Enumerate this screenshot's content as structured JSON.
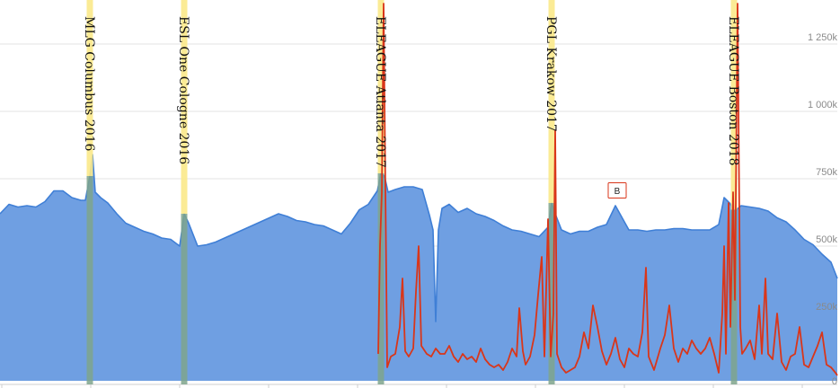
{
  "chart_data": {
    "type": "area",
    "title": "",
    "xlabel": "",
    "ylabel": "",
    "x_range": [
      0,
      932
    ],
    "ylim": [
      0,
      1400000
    ],
    "y_ticks": [
      {
        "value": 0,
        "label": "0"
      },
      {
        "value": 250000,
        "label": "250k"
      },
      {
        "value": 500000,
        "label": "500k"
      },
      {
        "value": 750000,
        "label": "750k"
      },
      {
        "value": 1000000,
        "label": "1 000k"
      },
      {
        "value": 1250000,
        "label": "1 250k"
      }
    ],
    "grid": true,
    "legend": "none",
    "colors": {
      "series_area_fill": "#6f9fe2",
      "series_area_line": "#3f7fd6",
      "series_line": "#d9361a",
      "event_band": "#fbe98a",
      "event_band_overlap": "#7fa48c",
      "grid": "#e3e3e3",
      "marker_border": "#d9361a"
    },
    "series": [
      {
        "kind": "area",
        "points": [
          [
            0,
            620000
          ],
          [
            10,
            655000
          ],
          [
            20,
            645000
          ],
          [
            30,
            650000
          ],
          [
            40,
            645000
          ],
          [
            50,
            665000
          ],
          [
            60,
            705000
          ],
          [
            70,
            705000
          ],
          [
            80,
            680000
          ],
          [
            90,
            670000
          ],
          [
            95,
            670000
          ],
          [
            100,
            760000
          ],
          [
            103,
            840000
          ],
          [
            106,
            700000
          ],
          [
            112,
            680000
          ],
          [
            120,
            660000
          ],
          [
            130,
            620000
          ],
          [
            140,
            585000
          ],
          [
            150,
            570000
          ],
          [
            160,
            555000
          ],
          [
            170,
            545000
          ],
          [
            180,
            530000
          ],
          [
            190,
            525000
          ],
          [
            200,
            500000
          ],
          [
            205,
            620000
          ],
          [
            210,
            585000
          ],
          [
            220,
            500000
          ],
          [
            230,
            505000
          ],
          [
            240,
            515000
          ],
          [
            250,
            530000
          ],
          [
            260,
            545000
          ],
          [
            270,
            560000
          ],
          [
            280,
            575000
          ],
          [
            290,
            590000
          ],
          [
            300,
            605000
          ],
          [
            310,
            620000
          ],
          [
            320,
            610000
          ],
          [
            330,
            595000
          ],
          [
            340,
            590000
          ],
          [
            350,
            580000
          ],
          [
            360,
            575000
          ],
          [
            370,
            560000
          ],
          [
            380,
            545000
          ],
          [
            390,
            585000
          ],
          [
            400,
            635000
          ],
          [
            410,
            655000
          ],
          [
            420,
            705000
          ],
          [
            424,
            770000
          ],
          [
            428,
            760000
          ],
          [
            432,
            700000
          ],
          [
            440,
            710000
          ],
          [
            450,
            720000
          ],
          [
            460,
            720000
          ],
          [
            470,
            710000
          ],
          [
            478,
            615000
          ],
          [
            482,
            560000
          ],
          [
            485,
            220000
          ],
          [
            488,
            560000
          ],
          [
            492,
            640000
          ],
          [
            500,
            655000
          ],
          [
            510,
            625000
          ],
          [
            520,
            640000
          ],
          [
            530,
            620000
          ],
          [
            540,
            610000
          ],
          [
            550,
            595000
          ],
          [
            560,
            575000
          ],
          [
            570,
            560000
          ],
          [
            580,
            555000
          ],
          [
            590,
            545000
          ],
          [
            600,
            535000
          ],
          [
            610,
            570000
          ],
          [
            614,
            660000
          ],
          [
            618,
            620000
          ],
          [
            625,
            560000
          ],
          [
            635,
            545000
          ],
          [
            645,
            555000
          ],
          [
            655,
            555000
          ],
          [
            665,
            570000
          ],
          [
            675,
            580000
          ],
          [
            685,
            650000
          ],
          [
            690,
            620000
          ],
          [
            700,
            560000
          ],
          [
            710,
            560000
          ],
          [
            720,
            555000
          ],
          [
            730,
            560000
          ],
          [
            740,
            560000
          ],
          [
            750,
            565000
          ],
          [
            760,
            565000
          ],
          [
            770,
            560000
          ],
          [
            780,
            560000
          ],
          [
            790,
            560000
          ],
          [
            800,
            580000
          ],
          [
            806,
            680000
          ],
          [
            812,
            660000
          ],
          [
            818,
            630000
          ],
          [
            825,
            650000
          ],
          [
            835,
            645000
          ],
          [
            845,
            640000
          ],
          [
            855,
            630000
          ],
          [
            865,
            605000
          ],
          [
            875,
            590000
          ],
          [
            885,
            560000
          ],
          [
            895,
            525000
          ],
          [
            905,
            505000
          ],
          [
            915,
            470000
          ],
          [
            925,
            440000
          ],
          [
            932,
            380000
          ]
        ]
      },
      {
        "kind": "line",
        "points": [
          [
            421,
            100000
          ],
          [
            423,
            500000
          ],
          [
            425,
            700000
          ],
          [
            427,
            1400000
          ],
          [
            429,
            700000
          ],
          [
            431,
            50000
          ],
          [
            435,
            90000
          ],
          [
            440,
            100000
          ],
          [
            445,
            200000
          ],
          [
            448,
            380000
          ],
          [
            451,
            110000
          ],
          [
            455,
            90000
          ],
          [
            460,
            120000
          ],
          [
            463,
            330000
          ],
          [
            466,
            500000
          ],
          [
            469,
            130000
          ],
          [
            475,
            100000
          ],
          [
            480,
            90000
          ],
          [
            485,
            120000
          ],
          [
            490,
            100000
          ],
          [
            495,
            100000
          ],
          [
            500,
            130000
          ],
          [
            505,
            90000
          ],
          [
            510,
            70000
          ],
          [
            515,
            100000
          ],
          [
            520,
            80000
          ],
          [
            525,
            90000
          ],
          [
            530,
            70000
          ],
          [
            535,
            120000
          ],
          [
            540,
            80000
          ],
          [
            545,
            60000
          ],
          [
            550,
            50000
          ],
          [
            555,
            60000
          ],
          [
            560,
            40000
          ],
          [
            565,
            70000
          ],
          [
            570,
            120000
          ],
          [
            575,
            90000
          ],
          [
            578,
            270000
          ],
          [
            582,
            110000
          ],
          [
            585,
            60000
          ],
          [
            590,
            90000
          ],
          [
            595,
            170000
          ],
          [
            599,
            320000
          ],
          [
            603,
            460000
          ],
          [
            606,
            90000
          ],
          [
            610,
            600000
          ],
          [
            613,
            90000
          ],
          [
            616,
            250000
          ],
          [
            618,
            930000
          ],
          [
            620,
            100000
          ],
          [
            625,
            50000
          ],
          [
            630,
            30000
          ],
          [
            640,
            50000
          ],
          [
            645,
            90000
          ],
          [
            650,
            180000
          ],
          [
            655,
            120000
          ],
          [
            660,
            280000
          ],
          [
            665,
            200000
          ],
          [
            670,
            110000
          ],
          [
            675,
            60000
          ],
          [
            680,
            100000
          ],
          [
            685,
            160000
          ],
          [
            690,
            80000
          ],
          [
            695,
            50000
          ],
          [
            700,
            120000
          ],
          [
            705,
            100000
          ],
          [
            710,
            90000
          ],
          [
            715,
            180000
          ],
          [
            719,
            420000
          ],
          [
            722,
            90000
          ],
          [
            728,
            40000
          ],
          [
            735,
            120000
          ],
          [
            740,
            170000
          ],
          [
            745,
            280000
          ],
          [
            750,
            120000
          ],
          [
            755,
            70000
          ],
          [
            760,
            120000
          ],
          [
            765,
            100000
          ],
          [
            770,
            150000
          ],
          [
            775,
            120000
          ],
          [
            780,
            100000
          ],
          [
            785,
            120000
          ],
          [
            790,
            160000
          ],
          [
            795,
            100000
          ],
          [
            800,
            30000
          ],
          [
            804,
            250000
          ],
          [
            806,
            500000
          ],
          [
            808,
            100000
          ],
          [
            811,
            660000
          ],
          [
            813,
            200000
          ],
          [
            816,
            700000
          ],
          [
            818,
            300000
          ],
          [
            821,
            1400000
          ],
          [
            824,
            200000
          ],
          [
            826,
            100000
          ],
          [
            830,
            120000
          ],
          [
            835,
            150000
          ],
          [
            840,
            80000
          ],
          [
            845,
            280000
          ],
          [
            848,
            100000
          ],
          [
            852,
            380000
          ],
          [
            855,
            100000
          ],
          [
            860,
            80000
          ],
          [
            865,
            250000
          ],
          [
            870,
            70000
          ],
          [
            875,
            40000
          ],
          [
            880,
            90000
          ],
          [
            885,
            100000
          ],
          [
            890,
            200000
          ],
          [
            895,
            60000
          ],
          [
            900,
            50000
          ],
          [
            905,
            90000
          ],
          [
            910,
            130000
          ],
          [
            915,
            180000
          ],
          [
            920,
            60000
          ],
          [
            925,
            50000
          ],
          [
            930,
            30000
          ],
          [
            932,
            20000
          ]
        ]
      }
    ],
    "events": [
      {
        "x": 100,
        "label": "MLG Columbus 2016"
      },
      {
        "x": 205,
        "label": "ESL One Cologne 2016"
      },
      {
        "x": 424,
        "label": "ELEAGUE Atlanta 2017"
      },
      {
        "x": 614,
        "label": "PGL Krakow 2017"
      },
      {
        "x": 817,
        "label": "ELEAGUE Boston 2018"
      }
    ],
    "annotations": [
      {
        "x": 687,
        "y": 705000,
        "label": "B"
      }
    ]
  }
}
